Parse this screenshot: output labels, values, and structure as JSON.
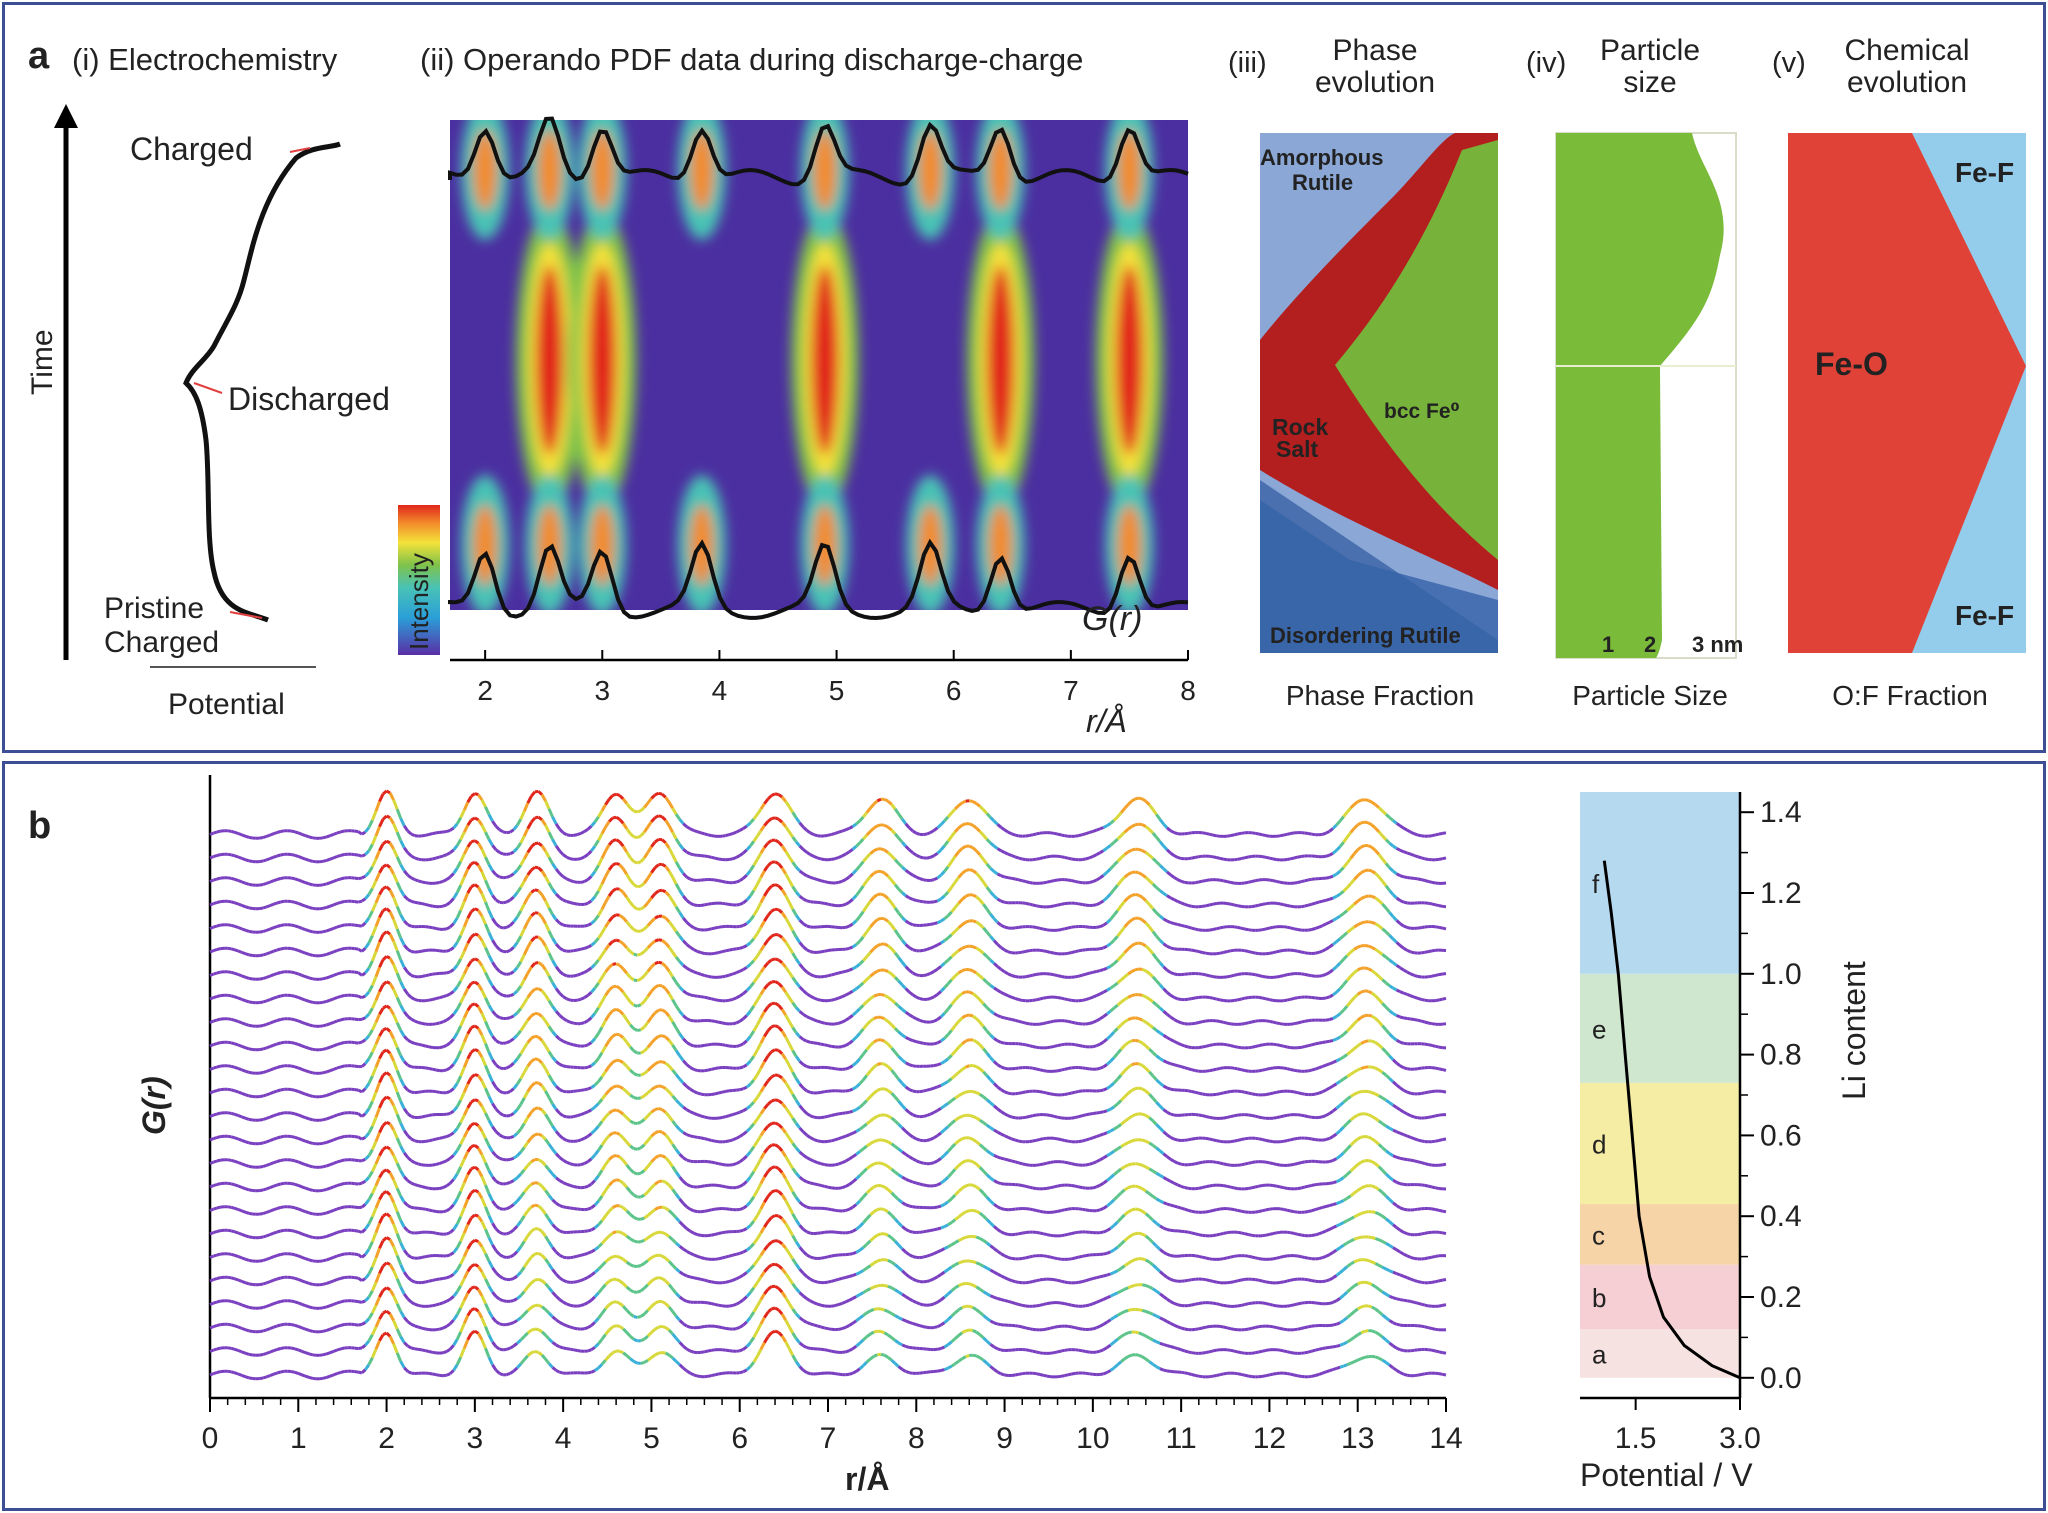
{
  "panel_a": {
    "label": "a",
    "sub_i": {
      "title": "(i) Electrochemistry",
      "time_label": "Time",
      "x_label": "Potential",
      "annotations": [
        "Charged",
        "Discharged",
        "Pristine",
        "Charged"
      ]
    },
    "sub_ii": {
      "title": "(ii) Operando PDF data during discharge-charge",
      "colorbar_label": "Intensity",
      "g_label": "G(r)",
      "x_label": "r/Å",
      "x_ticks": [
        "2",
        "3",
        "4",
        "5",
        "6",
        "7",
        "8"
      ]
    },
    "sub_iii": {
      "num": "(iii)",
      "title_1": "Phase",
      "title_2": "evolution",
      "x_label": "Phase Fraction",
      "regions": {
        "amorphous_1": "Amorphous",
        "amorphous_2": "Rutile",
        "rock_1": "Rock",
        "rock_2": "Salt",
        "bcc": "bcc Fe⁰",
        "disorder": "Disordering Rutile"
      },
      "colors": {
        "red": "#b31f1f",
        "green": "#77b23a",
        "blue": "#8aa7d6"
      }
    },
    "sub_iv": {
      "num": "(iv)",
      "title_1": "Particle",
      "title_2": "size",
      "x_label": "Particle Size",
      "ticks": [
        "1",
        "2",
        "3 nm"
      ],
      "color": "#7bbb3a"
    },
    "sub_v": {
      "num": "(v)",
      "title_1": "Chemical",
      "title_2": "evolution",
      "x_label": "O:F Fraction",
      "labels": {
        "top": "Fe-F",
        "mid": "Fe-O",
        "bottom": "Fe-F"
      },
      "colors": {
        "red": "#e04238",
        "blue": "#93cdeb"
      }
    }
  },
  "panel_b": {
    "label": "b",
    "y_label": "G(r)",
    "x_label": "r/Å",
    "x_ticks": [
      "0",
      "1",
      "2",
      "3",
      "4",
      "5",
      "6",
      "7",
      "8",
      "9",
      "10",
      "11",
      "12",
      "13",
      "14"
    ],
    "inset": {
      "x_label": "Potential / V",
      "y_label": "Li content",
      "x_ticks": [
        "1.5",
        "3.0"
      ],
      "y_ticks": [
        "0.0",
        "0.2",
        "0.4",
        "0.6",
        "0.8",
        "1.0",
        "1.2",
        "1.4"
      ],
      "bands": [
        {
          "label": "a",
          "from": 0.0,
          "to": 0.12,
          "color": "#f6e3e1"
        },
        {
          "label": "b",
          "from": 0.12,
          "to": 0.28,
          "color": "#f5cfd3"
        },
        {
          "label": "c",
          "from": 0.28,
          "to": 0.43,
          "color": "#f6d4a8"
        },
        {
          "label": "d",
          "from": 0.43,
          "to": 0.73,
          "color": "#f5eda4"
        },
        {
          "label": "e",
          "from": 0.73,
          "to": 1.0,
          "color": "#cfe6cf"
        },
        {
          "label": "f",
          "from": 1.0,
          "to": 1.45,
          "color": "#b5daf0"
        }
      ]
    }
  },
  "chart_data": [
    {
      "type": "heatmap",
      "title": "(ii) Operando PDF data during discharge-charge",
      "xlabel": "r/Å",
      "ylabel": "Time",
      "xlim": [
        1.7,
        8.0
      ],
      "colorbar": "Intensity",
      "peaks_pristine_r": [
        2.0,
        2.55,
        3.0,
        3.85,
        4.9,
        5.8,
        6.4,
        7.5
      ],
      "peaks_discharged_r": [
        2.55,
        3.0,
        4.9,
        6.4,
        7.5
      ],
      "envelope_label": "G(r)"
    },
    {
      "type": "line",
      "title": "",
      "xlabel": "r/Å",
      "ylabel": "G(r)",
      "xlim": [
        0,
        14
      ],
      "n_series": 24,
      "peak_positions_r": [
        2.0,
        3.0,
        3.7,
        4.6,
        5.1,
        6.4,
        7.6,
        8.6,
        10.5,
        13.1
      ]
    },
    {
      "type": "line",
      "title": "",
      "xlabel": "Potential / V",
      "ylabel": "Li content",
      "xlim": [
        0.7,
        3.0
      ],
      "ylim": [
        -0.05,
        1.45
      ],
      "x": [
        3.0,
        2.6,
        2.2,
        1.9,
        1.7,
        1.55,
        1.45,
        1.35,
        1.25,
        1.15,
        1.05
      ],
      "y": [
        0.0,
        0.03,
        0.08,
        0.15,
        0.25,
        0.4,
        0.6,
        0.8,
        1.0,
        1.15,
        1.28
      ]
    }
  ]
}
